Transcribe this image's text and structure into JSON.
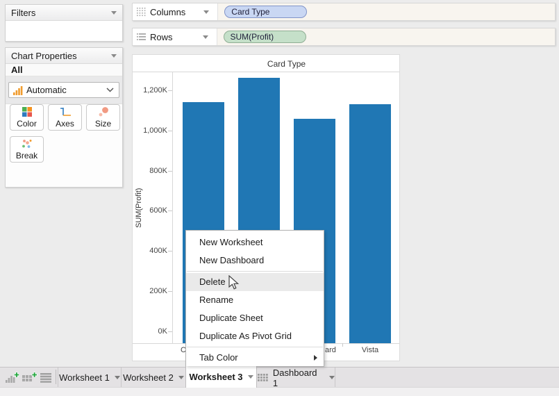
{
  "shelves": {
    "columns": {
      "label": "Columns",
      "pill": "Card Type"
    },
    "rows": {
      "label": "Rows",
      "pill": "SUM(Profit)"
    }
  },
  "sidebar": {
    "filters_title": "Filters",
    "chart_properties_title": "Chart Properties",
    "scope": "All",
    "mark_type": "Automatic",
    "buttons": [
      {
        "label": "Color",
        "icon": "color-squares-icon"
      },
      {
        "label": "Axes",
        "icon": "axes-icon"
      },
      {
        "label": "Size",
        "icon": "size-circles-icon"
      },
      {
        "label": "Break",
        "icon": "break-dots-icon"
      }
    ]
  },
  "chart_data": {
    "type": "bar",
    "title": "Card Type",
    "ylabel": "SUM(Profit)",
    "bar_color": "#2077b4",
    "categories_visible": [
      "C",
      "",
      "ard",
      "Vista"
    ],
    "values_k": [
      1140,
      1262,
      1058,
      1132
    ],
    "y_ticks": [
      {
        "value": 0,
        "label": "0K"
      },
      {
        "value": 200,
        "label": "200K"
      },
      {
        "value": 400,
        "label": "400K"
      },
      {
        "value": 600,
        "label": "600K"
      },
      {
        "value": 800,
        "label": "800K"
      },
      {
        "value": 1000,
        "label": "1,000K"
      },
      {
        "value": 1200,
        "label": "1,200K"
      }
    ],
    "ylim": [
      0,
      1295
    ],
    "grid": false,
    "legend": false
  },
  "context_menu": {
    "items": [
      {
        "label": "New Worksheet"
      },
      {
        "label": "New Dashboard"
      },
      {
        "separator": true
      },
      {
        "label": "Delete",
        "highlighted": true
      },
      {
        "label": "Rename"
      },
      {
        "label": "Duplicate Sheet"
      },
      {
        "label": "Duplicate As Pivot Grid"
      },
      {
        "separator": true
      },
      {
        "label": "Tab Color",
        "submenu": true
      }
    ]
  },
  "tab_bar": {
    "left_icons": [
      "new-worksheet-icon",
      "new-dashboard-icon",
      "list-icon"
    ],
    "tabs": [
      {
        "label": "Worksheet 1"
      },
      {
        "label": "Worksheet 2"
      },
      {
        "label": "Worksheet 3",
        "active": true
      },
      {
        "label": "Dashboard 1",
        "dashboard_icon": true
      }
    ]
  },
  "colors": {
    "bar_blue": "#2077b4",
    "pill_blue_fill": "#c9d7f3",
    "pill_blue_border": "#8094c8",
    "pill_green_fill": "#c5e0c9",
    "pill_green_border": "#8fae94",
    "menu_highlight": "#eaeaea",
    "workspace_bg": "#ececec"
  }
}
